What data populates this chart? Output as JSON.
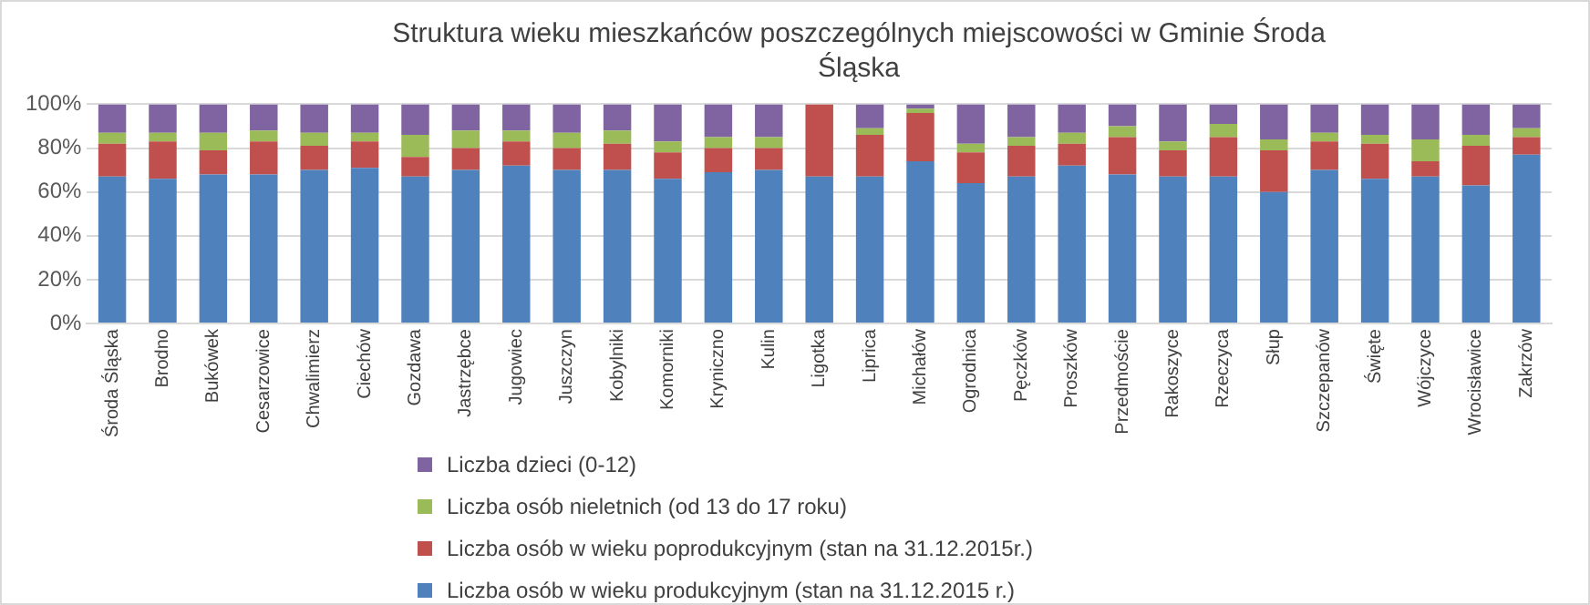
{
  "chart_data": {
    "type": "bar",
    "stacked": true,
    "title": "Struktura wieku mieszkańców poszczególnych miejscowości w Gminie Środa Śląska",
    "categories": [
      "Środa Śląska",
      "Brodno",
      "Bukówek",
      "Cesarzowice",
      "Chwalimierz",
      "Ciechów",
      "Gozdawa",
      "Jastrzębce",
      "Jugowiec",
      "Juszczyn",
      "Kobylniki",
      "Komorniki",
      "Kryniczno",
      "Kulin",
      "Ligotka",
      "Liprica",
      "Michałów",
      "Ogrodnica",
      "Pęczków",
      "Proszków",
      "Przedmoście",
      "Rakoszyce",
      "Rzeczyca",
      "Słup",
      "Szczepanów",
      "Święte",
      "Wójczyce",
      "Wrocisławice",
      "Zakrzów"
    ],
    "series": [
      {
        "name": "Liczba osób w wieku produkcyjnym (stan na 31.12.2015 r.)",
        "color": "#4f81bd",
        "values": [
          67,
          66,
          68,
          68,
          70,
          71,
          67,
          70,
          72,
          70,
          70,
          66,
          69,
          70,
          67,
          67,
          74,
          64,
          67,
          72,
          68,
          67,
          67,
          60,
          70,
          66,
          67,
          63,
          77
        ]
      },
      {
        "name": "Liczba osób w wieku poprodukcyjnym (stan na 31.12.2015r.)",
        "color": "#c0504d",
        "values": [
          15,
          17,
          11,
          15,
          11,
          12,
          9,
          10,
          11,
          10,
          12,
          12,
          11,
          10,
          33,
          19,
          22,
          14,
          14,
          10,
          17,
          12,
          18,
          19,
          13,
          16,
          7,
          18,
          8
        ]
      },
      {
        "name": "Liczba osób nieletnich (od 13 do 17 roku)",
        "color": "#9bbb59",
        "values": [
          5,
          4,
          8,
          5,
          6,
          4,
          10,
          8,
          5,
          7,
          6,
          5,
          5,
          5,
          0,
          3,
          2,
          4,
          4,
          5,
          5,
          4,
          6,
          5,
          4,
          4,
          10,
          5,
          4
        ]
      },
      {
        "name": "Liczba dzieci (0-12)",
        "color": "#8064a2",
        "values": [
          13,
          13,
          13,
          12,
          13,
          13,
          14,
          12,
          12,
          13,
          12,
          17,
          15,
          15,
          0,
          11,
          2,
          18,
          15,
          13,
          10,
          17,
          9,
          16,
          13,
          14,
          16,
          14,
          11
        ]
      }
    ],
    "ylim": [
      0,
      100
    ],
    "yticks": [
      {
        "value": 0,
        "label": "0%"
      },
      {
        "value": 20,
        "label": "20%"
      },
      {
        "value": 40,
        "label": "40%"
      },
      {
        "value": 60,
        "label": "60%"
      },
      {
        "value": 80,
        "label": "80%"
      },
      {
        "value": 100,
        "label": "100%"
      }
    ],
    "grid": "y",
    "legend": "bottom"
  }
}
